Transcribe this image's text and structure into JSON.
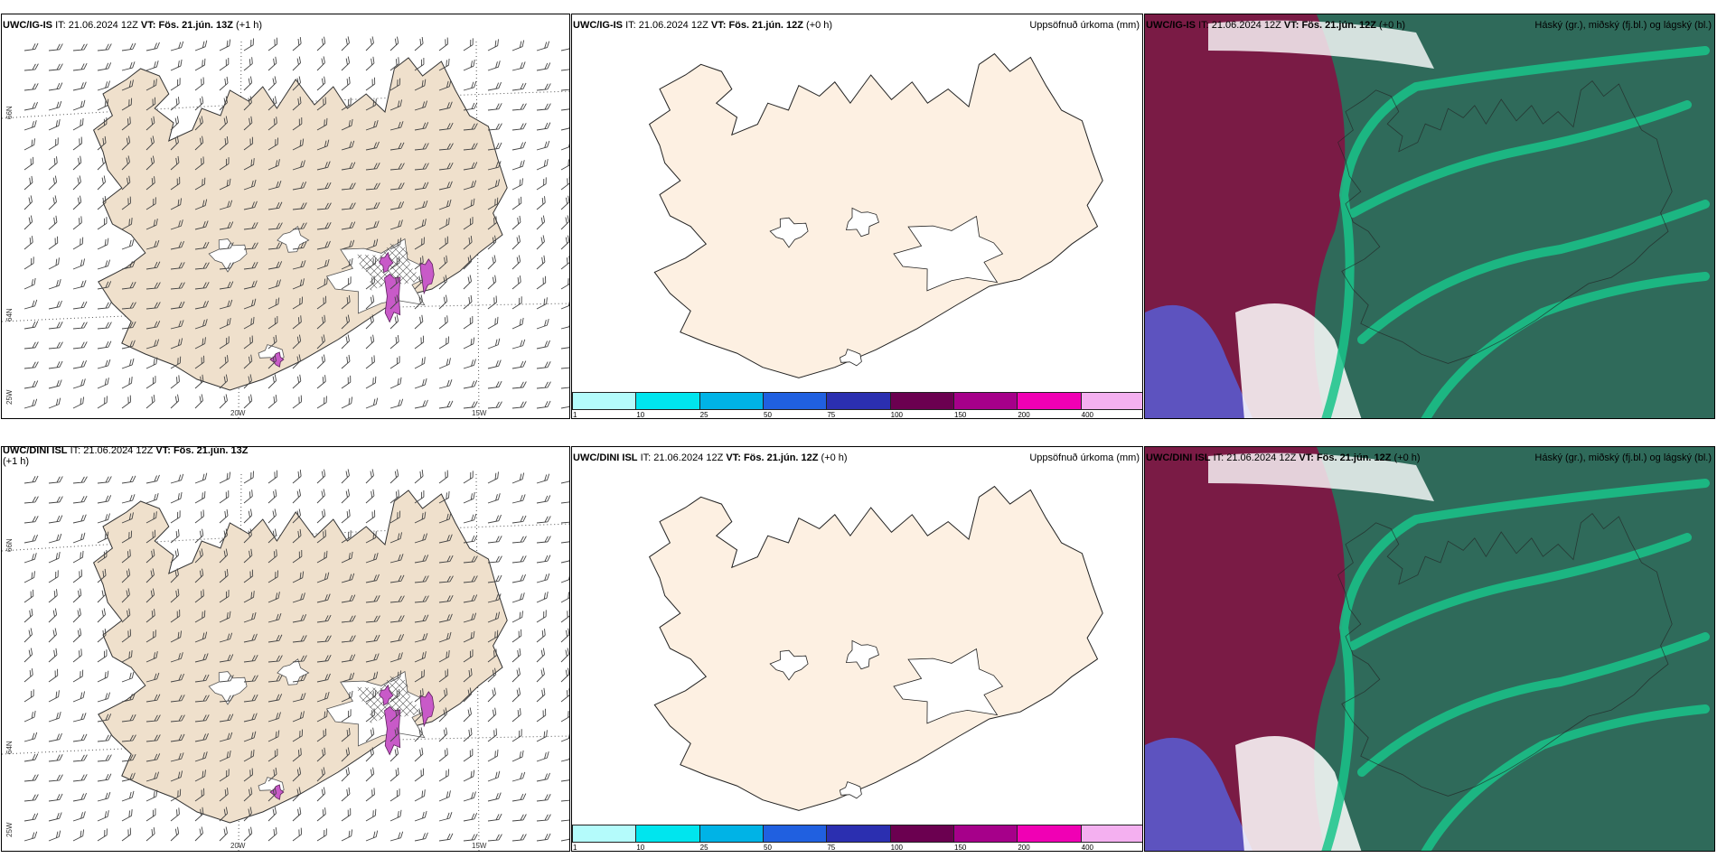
{
  "rows": [
    {
      "wind": {
        "model": "UWC/IG-IS",
        "it_label": "IT:",
        "it_value": "21.06.2024 12Z",
        "vt_label": "VT:",
        "vt_value": "Fös. 21.jún. 13Z",
        "offset": "(+1 h)"
      },
      "precip": {
        "model": "UWC/IG-IS",
        "it_label": "IT:",
        "it_value": "21.06.2024 12Z",
        "vt_label": "VT:",
        "vt_value": "Fös. 21.jún. 12Z",
        "offset": "(+0 h)",
        "title": "Uppsöfnuð úrkoma (mm)"
      },
      "cloud": {
        "model": "UWC/IG-IS",
        "it_label": "IT:",
        "it_value": "21.06.2024 12Z",
        "vt_label": "VT:",
        "vt_value": "Fös. 21.jún. 12Z",
        "offset": "(+0 h)",
        "title": "Háský (gr.), miðský (fj.bl.) og lágský (bl.)"
      }
    },
    {
      "wind": {
        "model": "UWC/DINI ISL",
        "it_label": "IT:",
        "it_value": "21.06.2024 12Z",
        "vt_label": "VT:",
        "vt_value": "Fös. 21.jún. 13Z",
        "offset": "(+1 h)"
      },
      "precip": {
        "model": "UWC/DINI ISL",
        "it_label": "IT:",
        "it_value": "21.06.2024 12Z",
        "vt_label": "VT:",
        "vt_value": "Fös. 21.jún. 12Z",
        "offset": "(+0 h)",
        "title": "Uppsöfnuð úrkoma (mm)"
      },
      "cloud": {
        "model": "UWC/DINI ISL",
        "it_label": "IT:",
        "it_value": "21.06.2024 12Z",
        "vt_label": "VT:",
        "vt_value": "Fös. 21.jún. 12Z",
        "offset": "(+0 h)",
        "title": "Háský (gr.), miðský (fj.bl.) og lágský (bl.)"
      }
    }
  ],
  "grid_labels": {
    "lat_66": "66N",
    "lat_64": "64N",
    "lon_25": "25W",
    "lon_20": "20W",
    "lon_15": "15W"
  },
  "colorbar": {
    "ticks": [
      "1",
      "10",
      "25",
      "50",
      "75",
      "100",
      "150",
      "200",
      "400"
    ],
    "colors": [
      "#b4fbfb",
      "#00e5ee",
      "#00b3e6",
      "#2060e0",
      "#2b2fb0",
      "#6b0050",
      "#a6008a",
      "#f000b4",
      "#f4b0f0"
    ]
  },
  "map_colors": {
    "land": "#efe0cc",
    "land_light": "#fdf0e2",
    "ice": "#ffffff",
    "precip": "#c85ac8",
    "cloud_high": "#2f6a5a",
    "cloud_mid": "#7a1b45",
    "cloud_low": "#5a5acc",
    "cloud_edge": "#19c48a"
  },
  "icons": [
    "wind-barb-icon",
    "coastline-outline"
  ]
}
